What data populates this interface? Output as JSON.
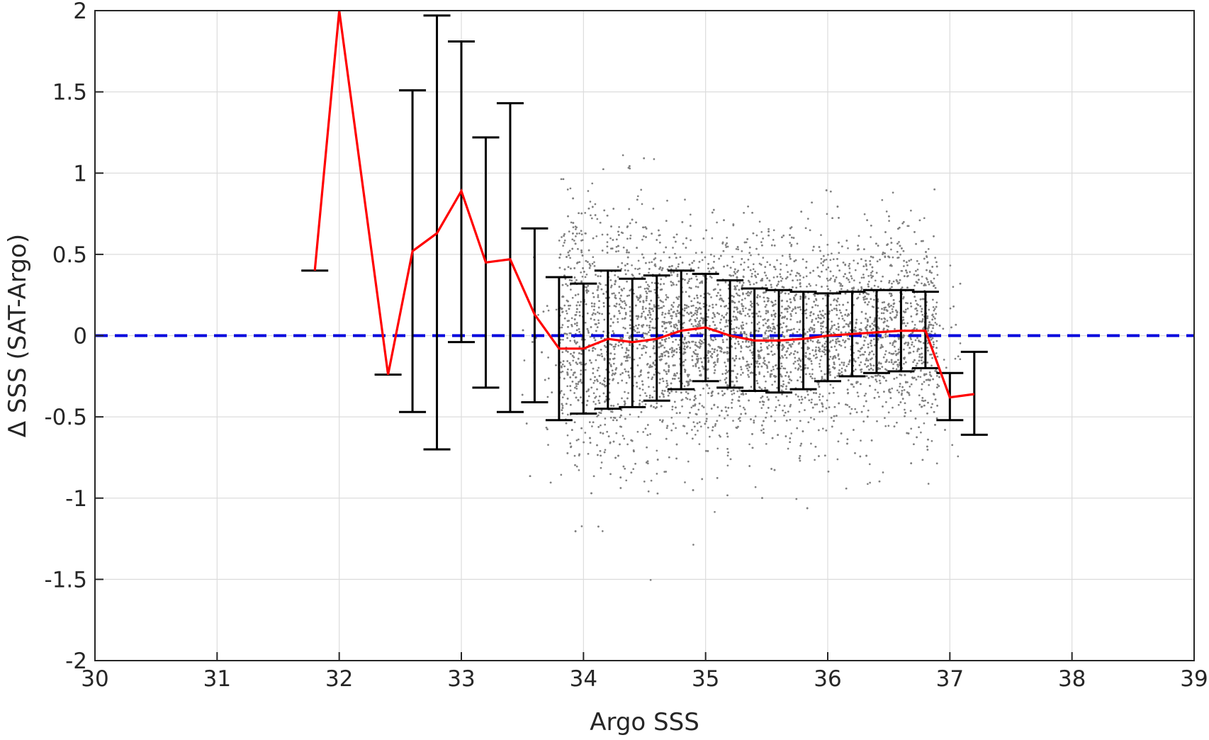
{
  "chart_data": {
    "type": "scatter",
    "xlabel": "Argo SSS",
    "ylabel": "Δ SSS (SAT-Argo)",
    "xlim": [
      30,
      39
    ],
    "ylim": [
      -2,
      2
    ],
    "xticks": [
      "30",
      "31",
      "32",
      "33",
      "34",
      "35",
      "36",
      "37",
      "38",
      "39"
    ],
    "yticks": [
      "-2",
      "-1.5",
      "-1",
      "-0.5",
      "0",
      "0.5",
      "1",
      "1.5",
      "2"
    ],
    "grid": true,
    "reference_line": {
      "y": 0,
      "color": "#0000dd",
      "style": "dashed"
    },
    "scatter_points": {
      "color": "#808080",
      "description_center_x": 35.2,
      "x_range": [
        33.4,
        37.2
      ],
      "y_std": 0.32
    },
    "series": [
      {
        "name": "",
        "color": "#ff0000",
        "x": [
          31.8,
          32.0,
          32.4,
          32.6,
          32.8,
          33.0,
          33.2,
          33.4,
          33.6,
          33.8,
          34.0,
          34.2,
          34.4,
          34.6,
          34.8,
          35.0,
          35.2,
          35.4,
          35.6,
          35.8,
          36.0,
          36.2,
          36.4,
          36.6,
          36.8,
          37.0,
          37.2
        ],
        "mean": [
          0.4,
          2.0,
          -0.24,
          0.52,
          0.63,
          0.89,
          0.45,
          0.47,
          0.13,
          -0.08,
          -0.08,
          -0.02,
          -0.04,
          -0.02,
          0.03,
          0.05,
          0.0,
          -0.03,
          -0.03,
          -0.02,
          0.0,
          0.01,
          0.02,
          0.03,
          0.03,
          -0.38,
          -0.36
        ],
        "lower": [
          0.4,
          null,
          -0.24,
          -0.47,
          -0.7,
          -0.04,
          -0.32,
          -0.47,
          -0.41,
          -0.52,
          -0.48,
          -0.45,
          -0.44,
          -0.4,
          -0.33,
          -0.28,
          -0.32,
          -0.34,
          -0.35,
          -0.33,
          -0.28,
          -0.25,
          -0.23,
          -0.22,
          -0.2,
          -0.52,
          -0.61
        ],
        "upper": [
          0.4,
          null,
          -0.24,
          1.51,
          1.97,
          1.81,
          1.22,
          1.43,
          0.66,
          0.36,
          0.32,
          0.4,
          0.35,
          0.37,
          0.4,
          0.38,
          0.34,
          0.29,
          0.28,
          0.27,
          0.26,
          0.27,
          0.28,
          0.28,
          0.27,
          -0.23,
          -0.1
        ]
      }
    ]
  }
}
